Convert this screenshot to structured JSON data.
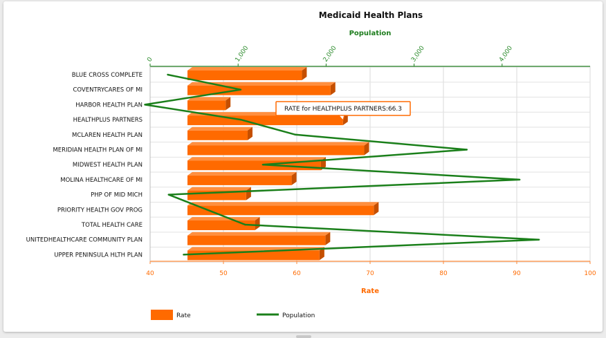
{
  "chart_data": {
    "type": "bar",
    "orientation": "horizontal",
    "title": "Medicaid Health Plans",
    "categories": [
      "BLUE CROSS COMPLETE",
      "COVENTRYCARES OF MI",
      "HARBOR HEALTH PLAN",
      "HEALTHPLUS PARTNERS",
      "MCLAREN HEALTH PLAN",
      "MERIDIAN HEALTH PLAN OF MI",
      "MIDWEST HEALTH PLAN",
      "MOLINA HEALTHCARE OF MI",
      "PHP OF MID MICH",
      "PRIORITY HEALTH GOV PROG",
      "TOTAL HEALTH CARE",
      "UNITEDHEALTHCARE COMMUNITY PLAN",
      "UPPER PENINSULA HLTH PLAN"
    ],
    "series": [
      {
        "name": "Rate",
        "type": "bar",
        "axis": "bottom",
        "color": "#ff6a00",
        "values": [
          60.7,
          64.6,
          50.3,
          66.3,
          53.3,
          69.2,
          63.3,
          59.3,
          53.1,
          70.5,
          54.3,
          63.9,
          63.1
        ]
      },
      {
        "name": "Population",
        "type": "line",
        "axis": "top",
        "color": "#1a7f1a",
        "values": [
          200,
          1030,
          -60,
          1030,
          1650,
          3600,
          1280,
          4200,
          210,
          null,
          1080,
          4420,
          380
        ]
      }
    ],
    "xlabel": "Rate",
    "x2label": "Population",
    "xlim": [
      40,
      100
    ],
    "xticks": [
      "40",
      "50",
      "60",
      "70",
      "80",
      "90",
      "100"
    ],
    "x2lim": [
      0,
      5000
    ],
    "x2ticks": [
      "0",
      "1,000",
      "2,000",
      "3,000",
      "4,000"
    ],
    "grid": true,
    "legend_position": "bottom-left",
    "legend": [
      {
        "label": "Rate",
        "color": "#ff6a00",
        "kind": "bar"
      },
      {
        "label": "Population",
        "color": "#1a7f1a",
        "kind": "line"
      }
    ],
    "tooltip": {
      "text": "RATE for HEALTHPLUS PARTNERS:66.3",
      "category_index": 3
    }
  }
}
